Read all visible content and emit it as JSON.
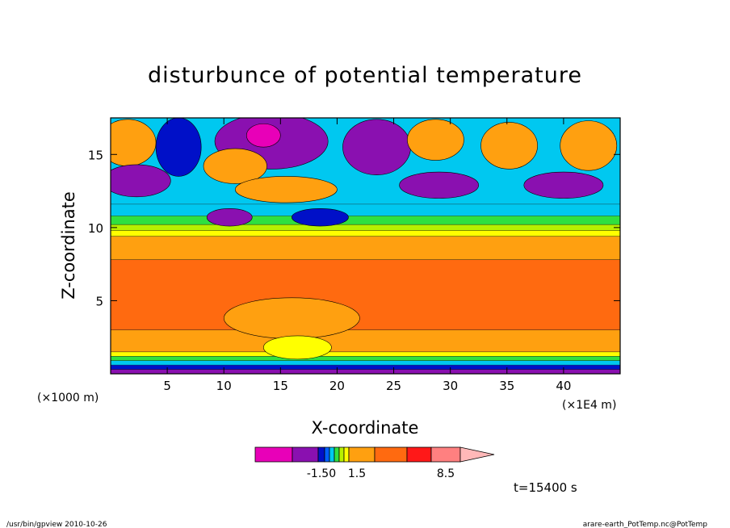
{
  "chart_data": {
    "type": "heatmap",
    "title": "disturbunce of potential temperature",
    "xlabel": "X-coordinate",
    "ylabel": "Z-coordinate",
    "x_unit_label": "(×1000 m)",
    "x_scale_label": "(×1E4 m)",
    "x_range": [
      0,
      45
    ],
    "y_range": [
      0,
      17.5
    ],
    "x_ticks": [
      "5",
      "10",
      "15",
      "20",
      "25",
      "30",
      "35",
      "40"
    ],
    "x_tick_values": [
      5,
      10,
      15,
      20,
      25,
      30,
      35,
      40
    ],
    "y_ticks": [
      "5",
      "10",
      "15"
    ],
    "y_tick_values": [
      5,
      10,
      15
    ],
    "grid": false,
    "time_label": "t=15400 s",
    "colorbar": {
      "colors": [
        "#e800b8",
        "#8a10b0",
        "#0010c8",
        "#0060ff",
        "#00c8f0",
        "#30e040",
        "#b8f000",
        "#ffff00",
        "#ffa010",
        "#ff6a10",
        "#ff1818",
        "#ff8080",
        "#ffb8b8"
      ],
      "tick_labels": [
        "-1.50",
        "1.5",
        "8.5"
      ]
    },
    "bands": [
      {
        "z": [
          0.0,
          0.3
        ],
        "color": "#8a10b0"
      },
      {
        "z": [
          0.3,
          0.6
        ],
        "color": "#0010c8"
      },
      {
        "z": [
          0.6,
          0.9
        ],
        "color": "#00c8f0"
      },
      {
        "z": [
          0.9,
          1.2
        ],
        "color": "#30e040"
      },
      {
        "z": [
          1.2,
          1.5
        ],
        "color": "#ffff00"
      },
      {
        "z": [
          1.5,
          3.0
        ],
        "color": "#ffa010"
      },
      {
        "z": [
          3.0,
          7.8
        ],
        "color": "#ff6a10"
      },
      {
        "z": [
          7.8,
          9.4
        ],
        "color": "#ffa010"
      },
      {
        "z": [
          9.4,
          9.8
        ],
        "color": "#ffff00"
      },
      {
        "z": [
          9.8,
          10.2
        ],
        "color": "#b8f000"
      },
      {
        "z": [
          10.2,
          10.8
        ],
        "color": "#30e040"
      },
      {
        "z": [
          10.8,
          11.6
        ],
        "color": "#00c8f0"
      },
      {
        "z": [
          11.6,
          17.5
        ],
        "color": "#00c8f0"
      }
    ],
    "blobs": [
      {
        "x": 1.5,
        "z": 15.8,
        "rx": 2.5,
        "rz": 1.6,
        "color": "#ffa010"
      },
      {
        "x": 2.3,
        "z": 13.2,
        "rx": 3.0,
        "rz": 1.1,
        "color": "#8a10b0"
      },
      {
        "x": 6.0,
        "z": 15.5,
        "rx": 2.0,
        "rz": 2.0,
        "color": "#0010c8"
      },
      {
        "x": 14.2,
        "z": 15.9,
        "rx": 5.0,
        "rz": 1.9,
        "color": "#8a10b0"
      },
      {
        "x": 13.5,
        "z": 16.3,
        "rx": 1.5,
        "rz": 0.8,
        "color": "#e800b8"
      },
      {
        "x": 11.0,
        "z": 14.2,
        "rx": 2.8,
        "rz": 1.2,
        "color": "#ffa010"
      },
      {
        "x": 15.5,
        "z": 12.6,
        "rx": 4.5,
        "rz": 0.9,
        "color": "#ffa010"
      },
      {
        "x": 10.5,
        "z": 10.7,
        "rx": 2.0,
        "rz": 0.6,
        "color": "#8a10b0"
      },
      {
        "x": 18.5,
        "z": 10.7,
        "rx": 2.5,
        "rz": 0.6,
        "color": "#0010c8"
      },
      {
        "x": 23.5,
        "z": 15.5,
        "rx": 3.0,
        "rz": 1.9,
        "color": "#8a10b0"
      },
      {
        "x": 28.7,
        "z": 16.0,
        "rx": 2.5,
        "rz": 1.4,
        "color": "#ffa010"
      },
      {
        "x": 29.0,
        "z": 12.9,
        "rx": 3.5,
        "rz": 0.9,
        "color": "#8a10b0"
      },
      {
        "x": 35.2,
        "z": 15.6,
        "rx": 2.5,
        "rz": 1.6,
        "color": "#ffa010"
      },
      {
        "x": 42.2,
        "z": 15.6,
        "rx": 2.5,
        "rz": 1.7,
        "color": "#ffa010"
      },
      {
        "x": 40.0,
        "z": 12.9,
        "rx": 3.5,
        "rz": 0.9,
        "color": "#8a10b0"
      },
      {
        "x": 16.0,
        "z": 3.8,
        "rx": 6.0,
        "rz": 1.4,
        "color": "#ffa010"
      },
      {
        "x": 16.5,
        "z": 1.8,
        "rx": 3.0,
        "rz": 0.8,
        "color": "#ffff00"
      }
    ]
  },
  "footer": {
    "left": "/usr/bin/gpview  2010-10-26",
    "right": "arare-earth_PotTemp.nc@PotTemp"
  }
}
